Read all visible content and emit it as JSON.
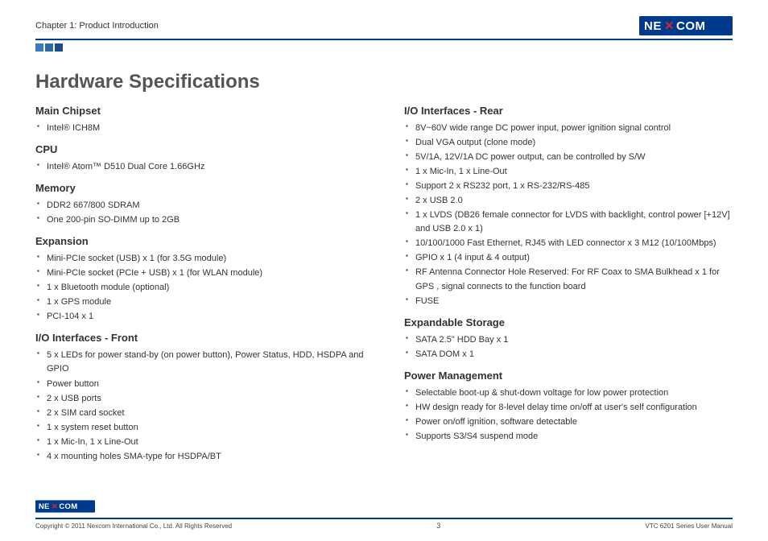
{
  "brand": {
    "name": "NEXCOM",
    "logo_bg": "#003a8c",
    "logo_text": "#ffffff",
    "x_accent": "#d22630"
  },
  "header": {
    "chapter": "Chapter 1: Product Introduction",
    "rule_color": "#003a8c",
    "squares": [
      "#3a7bbf",
      "#2f6aa8",
      "#1e4d85"
    ]
  },
  "page": {
    "title": "Hardware Specifications",
    "title_color": "#555555",
    "body_fontsize": 11,
    "heading_fontsize": 13
  },
  "columns": [
    {
      "sections": [
        {
          "heading": "Main Chipset",
          "items": [
            "Intel® ICH8M"
          ]
        },
        {
          "heading": "CPU",
          "items": [
            "Intel® Atom™ D510 Dual Core 1.66GHz"
          ]
        },
        {
          "heading": "Memory",
          "items": [
            "DDR2 667/800 SDRAM",
            "One 200-pin SO-DIMM up to 2GB"
          ]
        },
        {
          "heading": "Expansion",
          "items": [
            "Mini-PCIe socket (USB) x 1 (for 3.5G module)",
            "Mini-PCIe socket (PCIe + USB) x 1 (for WLAN module)",
            "1 x Bluetooth module (optional)",
            "1 x GPS module",
            "PCI-104 x 1"
          ]
        },
        {
          "heading": "I/O Interfaces - Front",
          "items": [
            "5 x LEDs for power stand-by (on power button), Power Status, HDD, HSDPA and GPIO",
            "Power button",
            "2 x USB ports",
            "2 x SIM card socket",
            "1 x system reset button",
            "1 x Mic-In, 1 x Line-Out",
            "4 x mounting holes SMA-type for HSDPA/BT"
          ]
        }
      ]
    },
    {
      "sections": [
        {
          "heading": "I/O Interfaces - Rear",
          "items": [
            "8V~60V wide range DC power input, power ignition signal control",
            "Dual VGA output (clone mode)",
            "5V/1A, 12V/1A DC power output, can be controlled by S/W",
            "1 x Mic-In, 1 x Line-Out",
            "Support 2 x RS232 port, 1 x RS-232/RS-485",
            "2 x USB 2.0",
            "1 x LVDS (DB26 female connector for LVDS with backlight, control power [+12V] and USB 2.0 x 1)",
            "10/100/1000 Fast Ethernet, RJ45 with LED connector x 3 M12 (10/100Mbps)",
            "GPIO x 1 (4 input & 4 output)",
            "RF Antenna Connector Hole Reserved: For RF Coax to SMA Bulkhead x 1 for GPS , signal connects to the function board",
            "FUSE"
          ]
        },
        {
          "heading": "Expandable Storage",
          "items": [
            "SATA 2.5\" HDD Bay x 1",
            "SATA DOM x 1"
          ]
        },
        {
          "heading": "Power Management",
          "items": [
            "Selectable boot-up & shut-down voltage for low power protection",
            "HW design ready for 8-level delay time on/off at user's self configuration",
            "Power on/off ignition, software detectable",
            "Supports S3/S4 suspend mode"
          ]
        }
      ]
    }
  ],
  "footer": {
    "copyright": "Copyright © 2011 Nexcom International Co., Ltd. All Rights Reserved",
    "page_number": "3",
    "doc": "VTC 6201 Series User Manual",
    "rule_color": "#003a8c"
  }
}
